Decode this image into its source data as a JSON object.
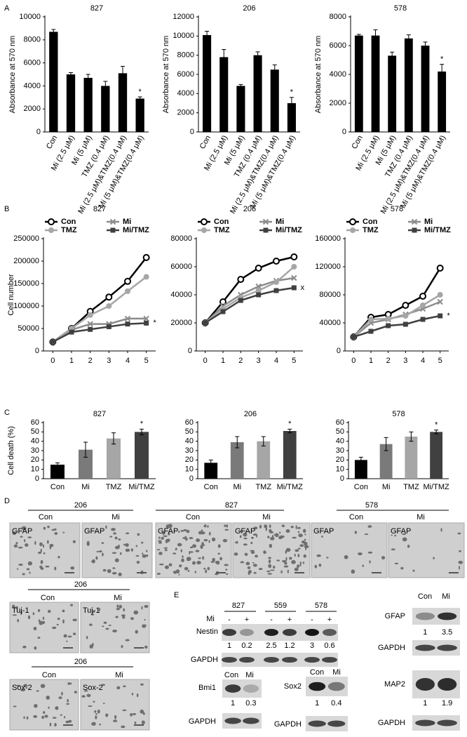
{
  "chart_data": [
    {
      "type": "bar",
      "title": "827",
      "ylabel": "Absorbance at 570 nm",
      "categories": [
        "Con",
        "Mi (2.5 μM)",
        "Mi (5 μM)",
        "TMZ (0.4 μM)",
        "Mi (2.5 μM)&TMZ(0.4 μM)",
        "Mi (5 μM)&TMZ(0.4 μM)"
      ],
      "values": [
        8700,
        5000,
        4700,
        4000,
        5100,
        2900
      ],
      "errors": [
        200,
        150,
        300,
        400,
        600,
        150
      ],
      "colors": [
        "#000000",
        "#000000",
        "#000000",
        "#000000",
        "#000000",
        "#000000"
      ],
      "ylim": [
        0,
        10000
      ],
      "yticks": [
        0,
        2000,
        4000,
        6000,
        8000,
        10000
      ],
      "annotation": "*"
    },
    {
      "type": "bar",
      "title": "206",
      "ylabel": "Absorbance at 570 nm",
      "categories": [
        "Con",
        "Mi (2.5 μM)",
        "Mi (5 μM)",
        "TMZ (0.4 μM)",
        "Mi (2.5 μM)&TMZ(0.4 μM)",
        "Mi (5 μM)&TMZ(0.4 μM)"
      ],
      "values": [
        10100,
        7800,
        4800,
        8000,
        6500,
        3000
      ],
      "errors": [
        400,
        800,
        150,
        350,
        500,
        600
      ],
      "colors": [
        "#000000",
        "#000000",
        "#000000",
        "#000000",
        "#000000",
        "#000000"
      ],
      "ylim": [
        0,
        12000
      ],
      "yticks": [
        0,
        2000,
        4000,
        6000,
        8000,
        10000,
        12000
      ],
      "annotation": "*"
    },
    {
      "type": "bar",
      "title": "578",
      "ylabel": "Absorbance at 570 nm",
      "categories": [
        "Con",
        "Mi (2.5 μM)",
        "Mi (5 μM)",
        "TMZ (0.4 μM)",
        "Mi (2.5 μM)&TMZ(0.4 μM)",
        "Mi (5 μM)&TMZ(0.4 μM)"
      ],
      "values": [
        6700,
        6700,
        5300,
        6500,
        6000,
        4200
      ],
      "errors": [
        80,
        400,
        250,
        250,
        250,
        500
      ],
      "colors": [
        "#000000",
        "#000000",
        "#000000",
        "#000000",
        "#000000",
        "#000000"
      ],
      "ylim": [
        0,
        8000
      ],
      "yticks": [
        0,
        2000,
        4000,
        6000,
        8000
      ],
      "annotation": "*"
    },
    {
      "type": "line",
      "title": "827",
      "ylabel": "Cell number",
      "legend": "top",
      "x": [
        0,
        1,
        2,
        3,
        4,
        5
      ],
      "xlim": [
        -0.5,
        5.5
      ],
      "xticks": [
        0,
        1,
        2,
        3,
        4,
        5
      ],
      "ylim": [
        0,
        250000
      ],
      "yticks": [
        0,
        50000,
        100000,
        150000,
        200000,
        250000
      ],
      "annotation": "*",
      "series": [
        {
          "name": "Con",
          "color": "#000000",
          "marker": "open-circle",
          "values": [
            20000,
            50000,
            88000,
            120000,
            155000,
            208000
          ]
        },
        {
          "name": "Mi",
          "color": "#8c8c8c",
          "marker": "x",
          "values": [
            20000,
            47000,
            60000,
            60000,
            72000,
            72000
          ]
        },
        {
          "name": "TMZ",
          "color": "#a6a6a6",
          "marker": "circle",
          "values": [
            20000,
            50000,
            80000,
            100000,
            133000,
            165000
          ]
        },
        {
          "name": "Mi/TMZ",
          "color": "#404040",
          "marker": "square",
          "values": [
            20000,
            42000,
            48000,
            54000,
            60000,
            62000
          ]
        }
      ]
    },
    {
      "type": "line",
      "title": "206",
      "legend": "top",
      "x": [
        0,
        1,
        2,
        3,
        4,
        5
      ],
      "xlim": [
        -0.5,
        5.5
      ],
      "xticks": [
        0,
        1,
        2,
        3,
        4,
        5
      ],
      "ylim": [
        0,
        80000
      ],
      "yticks": [
        0,
        20000,
        40000,
        60000,
        80000
      ],
      "annotation": "x",
      "series": [
        {
          "name": "Con",
          "color": "#000000",
          "marker": "open-circle",
          "values": [
            20000,
            35000,
            51000,
            59000,
            64000,
            67000
          ]
        },
        {
          "name": "Mi",
          "color": "#8c8c8c",
          "marker": "x",
          "values": [
            20000,
            32000,
            40000,
            46000,
            50000,
            52000
          ]
        },
        {
          "name": "TMZ",
          "color": "#a6a6a6",
          "marker": "circle",
          "values": [
            20000,
            30000,
            38000,
            43000,
            49000,
            60000
          ]
        },
        {
          "name": "Mi/TMZ",
          "color": "#404040",
          "marker": "square",
          "values": [
            20000,
            28000,
            36000,
            40000,
            43000,
            45000
          ]
        }
      ]
    },
    {
      "type": "line",
      "title": "578",
      "legend": "top",
      "x": [
        0,
        1,
        2,
        3,
        4,
        5
      ],
      "xlim": [
        -0.5,
        5.5
      ],
      "xticks": [
        0,
        1,
        2,
        3,
        4,
        5
      ],
      "ylim": [
        0,
        160000
      ],
      "yticks": [
        0,
        40000,
        80000,
        120000,
        160000
      ],
      "annotation": "*",
      "series": [
        {
          "name": "Con",
          "color": "#000000",
          "marker": "open-circle",
          "values": [
            20000,
            48000,
            52000,
            65000,
            78000,
            118000
          ]
        },
        {
          "name": "Mi",
          "color": "#8c8c8c",
          "marker": "x",
          "values": [
            20000,
            40000,
            45000,
            52000,
            60000,
            70000
          ]
        },
        {
          "name": "TMZ",
          "color": "#a6a6a6",
          "marker": "circle",
          "values": [
            20000,
            45000,
            46000,
            50000,
            65000,
            80000
          ]
        },
        {
          "name": "Mi/TMZ",
          "color": "#404040",
          "marker": "square",
          "values": [
            20000,
            28000,
            36000,
            38000,
            45000,
            50000
          ]
        }
      ]
    },
    {
      "type": "bar",
      "title": "827",
      "ylabel": "Cell death (%)",
      "categories": [
        "Con",
        "Mi",
        "TMZ",
        "Mi/TMZ"
      ],
      "values": [
        15,
        31,
        43,
        50
      ],
      "errors": [
        2,
        8,
        6,
        3
      ],
      "colors": [
        "#000000",
        "#7a7a7a",
        "#a6a6a6",
        "#404040"
      ],
      "ylim": [
        0,
        60
      ],
      "yticks": [
        0,
        10,
        20,
        30,
        40,
        50,
        60
      ],
      "annotation": "*"
    },
    {
      "type": "bar",
      "title": "206",
      "categories": [
        "Con",
        "Mi",
        "TMZ",
        "Mi/TMZ"
      ],
      "values": [
        17,
        39,
        40,
        51
      ],
      "errors": [
        3,
        6,
        5,
        2
      ],
      "colors": [
        "#000000",
        "#7a7a7a",
        "#a6a6a6",
        "#404040"
      ],
      "ylim": [
        0,
        60
      ],
      "yticks": [
        0,
        10,
        20,
        30,
        40,
        50,
        60
      ],
      "annotation": "*"
    },
    {
      "type": "bar",
      "title": "578",
      "categories": [
        "Con",
        "Mi",
        "TMZ",
        "Mi/TMZ"
      ],
      "values": [
        20,
        37,
        45,
        50
      ],
      "errors": [
        3,
        7,
        5,
        2
      ],
      "colors": [
        "#000000",
        "#7a7a7a",
        "#a6a6a6",
        "#404040"
      ],
      "ylim": [
        0,
        60
      ],
      "yticks": [
        0,
        10,
        20,
        30,
        40,
        50,
        60
      ],
      "annotation": "*"
    }
  ],
  "panel_labels": [
    "A",
    "B",
    "C",
    "D",
    "E"
  ],
  "microscopy": [
    {
      "title": "206",
      "conditions": [
        "Con",
        "Mi"
      ],
      "stains": [
        "GFAP",
        "GFAP"
      ]
    },
    {
      "title": "827",
      "conditions": [
        "Con",
        "Mi"
      ],
      "stains": [
        "GFAP",
        "GFAP"
      ]
    },
    {
      "title": "578",
      "conditions": [
        "Con",
        "Mi"
      ],
      "stains": [
        "GFAP",
        "GFAP"
      ]
    },
    {
      "title": "206",
      "conditions": [
        "Con",
        "Mi"
      ],
      "stains": [
        "Tuj-1",
        "Tuj-1"
      ]
    },
    {
      "title": "206",
      "conditions": [
        "Con",
        "Mi"
      ],
      "stains": [
        "Sox-2",
        "Sox-2"
      ]
    }
  ],
  "western_blot": {
    "main": {
      "cell_lines": [
        "827",
        "559",
        "578"
      ],
      "treatment": "Mi",
      "signs": [
        "-",
        "+",
        "-",
        "+",
        "-",
        "+"
      ],
      "target": "Nestin",
      "quantification": [
        1,
        0.2,
        2.5,
        1.2,
        3,
        0.6
      ],
      "loading": "GAPDH"
    },
    "small": [
      {
        "conditions": [
          "Con",
          "Mi"
        ],
        "target": "GFAP",
        "quantification": [
          1,
          3.5
        ],
        "loading": "GAPDH"
      },
      {
        "conditions": [
          "Con",
          "Mi"
        ],
        "target": "Bmi1",
        "quantification": [
          1,
          0.3
        ],
        "loading": "GAPDH"
      },
      {
        "conditions": [
          "Con",
          "Mi"
        ],
        "target": "Sox2",
        "quantification": [
          1,
          0.4
        ],
        "loading": "GAPDH"
      },
      {
        "target": "MAP2",
        "quantification": [
          1,
          1.9
        ],
        "loading": "GAPDH"
      }
    ]
  }
}
